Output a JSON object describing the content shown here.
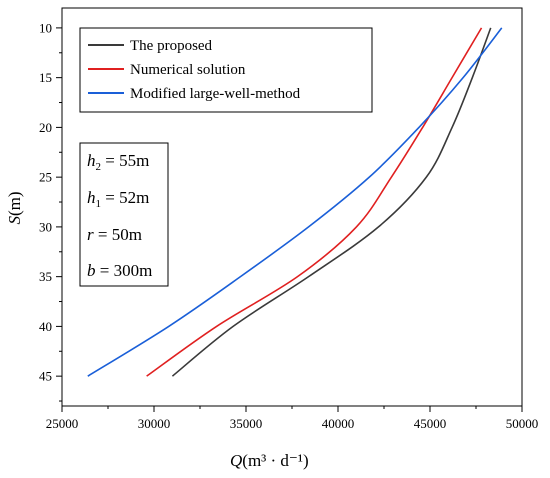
{
  "chart_data": {
    "type": "line",
    "xlabel_var": "Q",
    "xlabel_unit": "(m³ · d⁻¹)",
    "ylabel_var": "S",
    "ylabel_unit": "(m)",
    "xlim": [
      25000,
      50000
    ],
    "ylim": [
      48,
      8
    ],
    "y_inverted": true,
    "grid": false,
    "legend_placement": "top-left",
    "x_ticks": [
      25000,
      30000,
      35000,
      40000,
      45000,
      50000
    ],
    "x_tick_labels": [
      "25000",
      "30000",
      "35000",
      "40000",
      "45000",
      "50000"
    ],
    "y_ticks": [
      10,
      15,
      20,
      25,
      30,
      35,
      40,
      45
    ],
    "y_tick_labels": [
      "10",
      "15",
      "20",
      "25",
      "30",
      "35",
      "40",
      "45"
    ],
    "series": [
      {
        "name": "The proposed",
        "color": "#3a3a3a",
        "points": [
          [
            48300,
            10
          ],
          [
            47300,
            15
          ],
          [
            46200,
            20
          ],
          [
            44800,
            25
          ],
          [
            42200,
            30
          ],
          [
            38400,
            35
          ],
          [
            34300,
            40
          ],
          [
            31000,
            45
          ]
        ]
      },
      {
        "name": "Numerical solution",
        "color": "#e02020",
        "points": [
          [
            47800,
            10
          ],
          [
            46200,
            15
          ],
          [
            44600,
            20
          ],
          [
            42900,
            25
          ],
          [
            41000,
            30
          ],
          [
            37800,
            35
          ],
          [
            33400,
            40
          ],
          [
            29600,
            45
          ]
        ]
      },
      {
        "name": "Modified large-well-method",
        "color": "#1a5fd8",
        "points": [
          [
            48900,
            10
          ],
          [
            46800,
            15
          ],
          [
            44400,
            20
          ],
          [
            41700,
            25
          ],
          [
            38400,
            30
          ],
          [
            34700,
            35
          ],
          [
            30800,
            40
          ],
          [
            26400,
            45
          ]
        ]
      }
    ],
    "annotations": [
      {
        "var": "h",
        "sub": "2",
        "text": " = 55m"
      },
      {
        "var": "h",
        "sub": "1",
        "text": " = 52m"
      },
      {
        "var": "r",
        "sub": "",
        "text": " = 50m"
      },
      {
        "var": "b",
        "sub": "",
        "text": " = 300m"
      }
    ]
  }
}
